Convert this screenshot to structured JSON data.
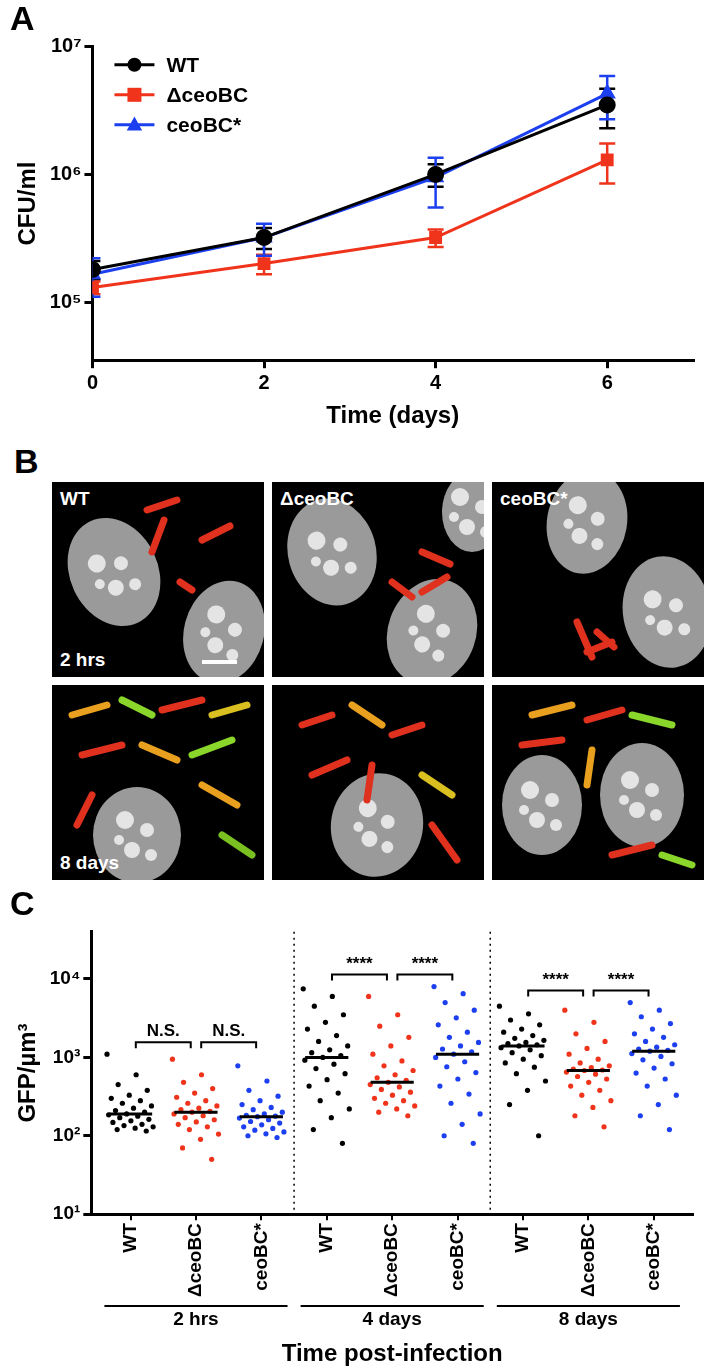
{
  "chart_data": [
    {
      "type": "line",
      "title": "A",
      "x_label": "Time (days)",
      "y_label": "CFU/ml",
      "x": [
        0,
        2,
        4,
        6
      ],
      "series": [
        {
          "name": "WT",
          "color": "#000000",
          "marker": "circle",
          "values": [
            180000,
            320000,
            1000000,
            3500000
          ],
          "errors": [
            30000,
            60000,
            200000,
            1200000
          ]
        },
        {
          "name": "ΔceoBC",
          "color": "#f0341c",
          "marker": "square",
          "values": [
            130000,
            200000,
            320000,
            1300000
          ],
          "errors": [
            15000,
            35000,
            50000,
            450000
          ]
        },
        {
          "name": "ceoBC*",
          "color": "#1c3ff0",
          "marker": "triangle",
          "values": [
            165000,
            320000,
            950000,
            4300000
          ],
          "errors": [
            55000,
            90000,
            400000,
            1600000
          ]
        }
      ],
      "xlim": [
        0,
        7
      ],
      "xticks": [
        0,
        2,
        4,
        6
      ],
      "ylim": [
        35000,
        10000000
      ],
      "yticks": [
        {
          "value": 100000,
          "label": "10⁵"
        },
        {
          "value": 1000000,
          "label": "10⁶"
        },
        {
          "value": 10000000,
          "label": "10⁷"
        }
      ],
      "log": "y",
      "grid": false,
      "legend": "top-left"
    },
    {
      "type": "strip",
      "title": "C",
      "x_label": "Time post-infection",
      "y_label": "GFP/µm³",
      "categories": [
        "WT",
        "ΔceoBC",
        "ceoBC*",
        "WT",
        "ΔceoBC",
        "ceoBC*",
        "WT",
        "ΔceoBC",
        "ceoBC*"
      ],
      "group_labels": [
        "2 hrs",
        "2 hrs",
        "2 hrs",
        "4 days",
        "4 days",
        "4 days",
        "8 days",
        "8 days",
        "8 days"
      ],
      "colors": [
        "#000000",
        "#f0341c",
        "#1c3ff0",
        "#000000",
        "#f0341c",
        "#1c3ff0",
        "#000000",
        "#f0341c",
        "#1c3ff0"
      ],
      "values": [
        [
          1100,
          600,
          450,
          380,
          330,
          300,
          280,
          260,
          240,
          225,
          210,
          200,
          190,
          185,
          178,
          170,
          162,
          155,
          148,
          140,
          135,
          130,
          125,
          120,
          115
        ],
        [
          950,
          600,
          480,
          400,
          350,
          310,
          280,
          260,
          240,
          225,
          215,
          205,
          200,
          190,
          180,
          170,
          160,
          150,
          140,
          130,
          120,
          105,
          90,
          70,
          50
        ],
        [
          780,
          500,
          380,
          320,
          280,
          250,
          230,
          215,
          200,
          190,
          182,
          178,
          175,
          168,
          160,
          152,
          145,
          138,
          130,
          124,
          118,
          112,
          106,
          100,
          95
        ],
        [
          7500,
          6000,
          4500,
          3500,
          2800,
          2300,
          1900,
          1600,
          1400,
          1250,
          1150,
          1050,
          1000,
          920,
          820,
          720,
          620,
          520,
          430,
          350,
          280,
          220,
          170,
          120,
          80
        ],
        [
          6000,
          3500,
          2500,
          1800,
          1400,
          1100,
          900,
          780,
          680,
          600,
          550,
          510,
          480,
          450,
          420,
          390,
          360,
          330,
          300,
          280,
          260,
          240,
          220,
          200,
          180
        ],
        [
          8000,
          6500,
          5000,
          4000,
          3200,
          2600,
          2100,
          1800,
          1550,
          1400,
          1280,
          1180,
          1100,
          1000,
          880,
          760,
          640,
          530,
          430,
          340,
          260,
          190,
          140,
          100,
          80
        ],
        [
          4500,
          3600,
          3000,
          2600,
          2300,
          2100,
          1900,
          1750,
          1650,
          1550,
          1500,
          1450,
          1400,
          1330,
          1250,
          1150,
          1050,
          950,
          850,
          750,
          620,
          500,
          380,
          250,
          100
        ],
        [
          4000,
          2800,
          2000,
          1600,
          1300,
          1100,
          950,
          850,
          780,
          740,
          710,
          690,
          680,
          650,
          610,
          570,
          530,
          480,
          430,
          380,
          330,
          280,
          230,
          180,
          130
        ],
        [
          5000,
          4000,
          3300,
          2700,
          2300,
          2000,
          1800,
          1600,
          1450,
          1350,
          1280,
          1230,
          1200,
          1120,
          1030,
          930,
          830,
          730,
          630,
          530,
          430,
          330,
          250,
          180,
          120
        ]
      ],
      "medians": [
        190,
        200,
        175,
        1000,
        480,
        1100,
        1400,
        680,
        1200
      ],
      "ylim": [
        10,
        40000
      ],
      "yticks": [
        {
          "value": 10,
          "label": "10¹"
        },
        {
          "value": 100,
          "label": "10²"
        },
        {
          "value": 1000,
          "label": "10³"
        },
        {
          "value": 10000,
          "label": "10⁴"
        }
      ],
      "log": "y",
      "grid": false,
      "comparisons": [
        {
          "categories": [
            0,
            1
          ],
          "label": "N.S."
        },
        {
          "categories": [
            1,
            2
          ],
          "label": "N.S."
        },
        {
          "categories": [
            3,
            4
          ],
          "label": "****"
        },
        {
          "categories": [
            4,
            5
          ],
          "label": "****"
        },
        {
          "categories": [
            6,
            7
          ],
          "label": "****"
        },
        {
          "categories": [
            7,
            8
          ],
          "label": "****"
        }
      ]
    }
  ],
  "image_panel": {
    "title": "B",
    "columns": [
      "WT",
      "ΔceoBC",
      "ceoBC*"
    ],
    "rows": [
      "2 hrs",
      "8 days"
    ]
  }
}
